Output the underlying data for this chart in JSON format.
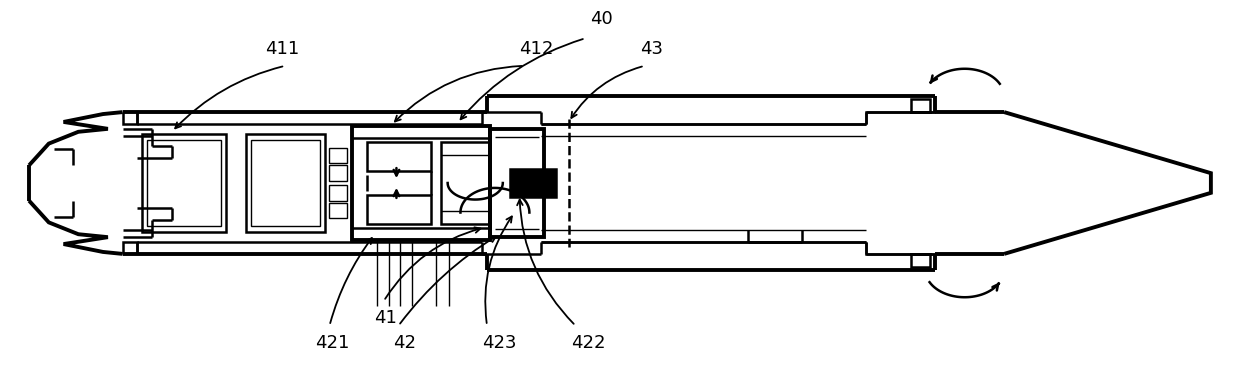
{
  "background_color": "#ffffff",
  "line_color": "#000000",
  "figsize": [
    12.39,
    3.66
  ],
  "dpi": 100,
  "lw_thin": 1.0,
  "lw_med": 1.8,
  "lw_thick": 2.8
}
